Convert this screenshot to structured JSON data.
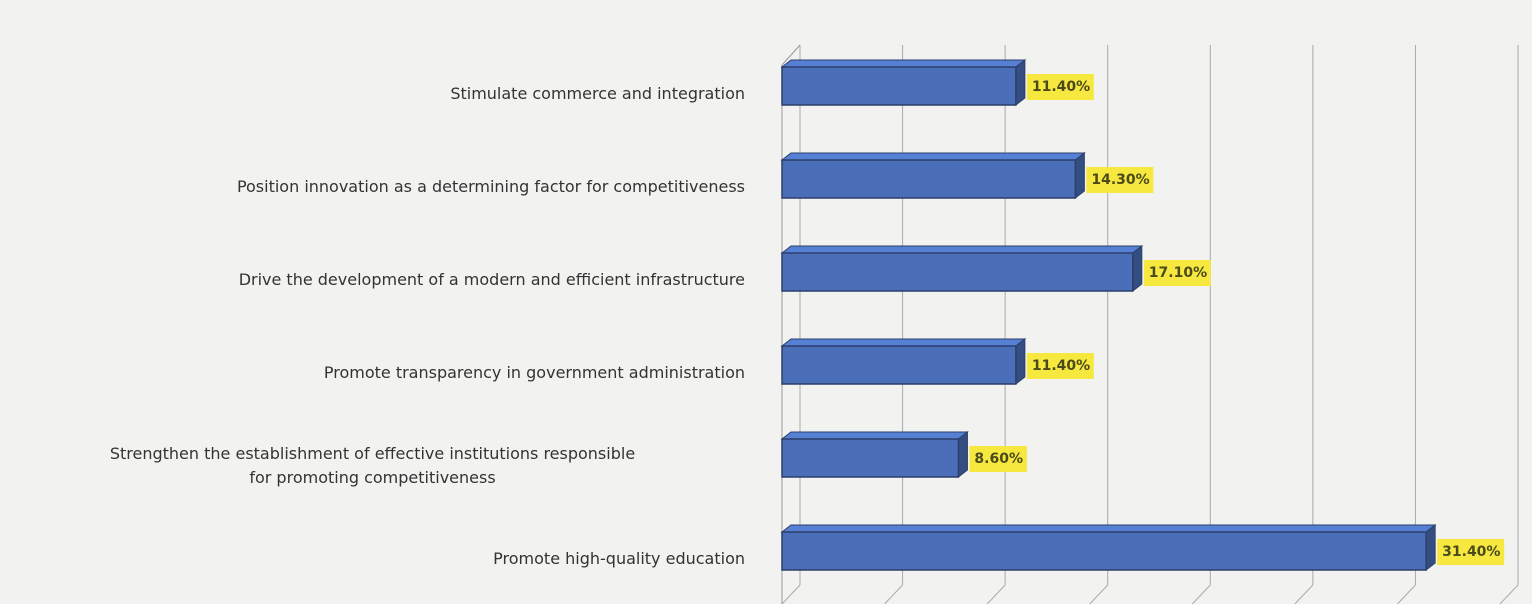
{
  "chart_data": {
    "type": "bar",
    "orientation": "horizontal",
    "categories": [
      "Stimulate commerce and integration",
      "Position innovation as a determining factor for competitiveness",
      "Drive the development of a modern and efficient infrastructure",
      "Promote transparency in government administration",
      "Strengthen the establishment of effective institutions responsible\nfor promoting competitiveness",
      "Promote high-quality education"
    ],
    "values": [
      11.4,
      14.3,
      17.1,
      11.4,
      8.6,
      31.4
    ],
    "value_labels": [
      "11.40%",
      "14.30%",
      "17.10%",
      "11.40%",
      "8.60%",
      "31.40%"
    ],
    "color": "#4a6fb8",
    "label_color": "#f7e840",
    "xlim": [
      0,
      35
    ],
    "xticks": [
      0,
      5,
      10,
      15,
      20,
      25,
      30,
      35
    ],
    "grid": true
  }
}
